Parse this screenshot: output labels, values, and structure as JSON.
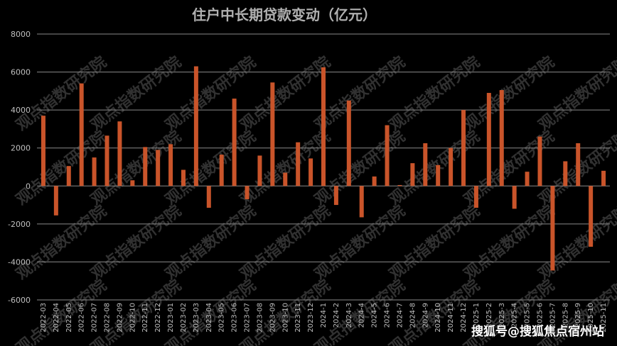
{
  "watermark": "观点指数研究院",
  "credit": "搜狐号@搜狐焦点宿州站",
  "colors": {
    "background": "#000000",
    "bar": "#c9542a",
    "grid": "#8a8a8a"
  },
  "chart_data": {
    "type": "bar",
    "title": "住户中长期贷款变动（亿元）",
    "xlabel": "",
    "ylabel": "",
    "ylim": [
      -6000,
      8000
    ],
    "yticks": [
      -6000,
      -4000,
      -2000,
      0,
      2000,
      4000,
      6000,
      8000
    ],
    "grid": true,
    "legend": "none",
    "categories": [
      "2022-03",
      "2022-04",
      "2022-05",
      "2022-06",
      "2022-07",
      "2022-08",
      "2022-09",
      "2022-10",
      "2022-11",
      "2022-12",
      "2023-01",
      "2023-02",
      "2023-03",
      "2023-04",
      "2023-05",
      "2023-06",
      "2023-07",
      "2023-08",
      "2023-09",
      "2023-10",
      "2023-11",
      "2023-12",
      "2024-1",
      "2024-2",
      "2024-3",
      "2024-4",
      "2024-5",
      "2024-6",
      "2024-7",
      "2024-8",
      "2024-9",
      "2024-10",
      "2024-11",
      "2024-12",
      "2025-1",
      "2025-2",
      "2025-3",
      "2025-4",
      "2025-5",
      "2025-6",
      "2025-7",
      "2025-8",
      "2025-9",
      "2025-10",
      "2025-11"
    ],
    "values": [
      3700,
      -1550,
      1050,
      5400,
      1500,
      2650,
      3400,
      300,
      2050,
      1900,
      2200,
      850,
      6300,
      -1150,
      1650,
      4600,
      -700,
      1600,
      5450,
      700,
      2300,
      1450,
      6250,
      -1000,
      4500,
      -1650,
      500,
      3200,
      50,
      1200,
      2250,
      1100,
      2000,
      4000,
      -1150,
      4900,
      5050,
      -1200,
      750,
      2600,
      -4450,
      1300,
      2250,
      -3200,
      800
    ]
  }
}
